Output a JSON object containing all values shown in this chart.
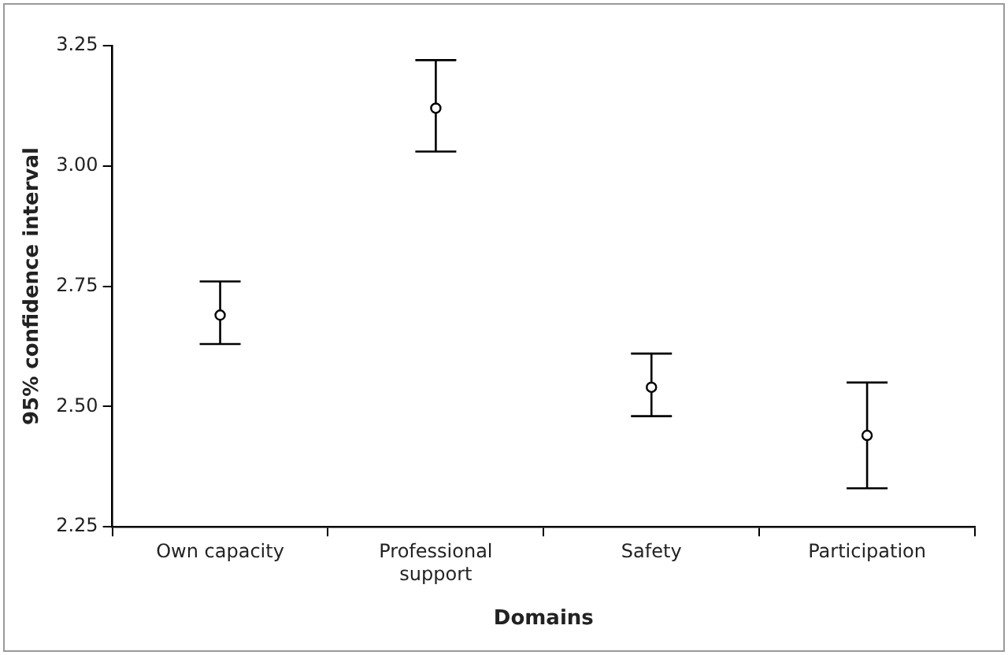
{
  "chart_data": {
    "type": "scatter",
    "xlabel": "Domains",
    "ylabel": "95% confidence interval",
    "categories": [
      "Own capacity",
      "Professional support",
      "Safety",
      "Participation"
    ],
    "series": [
      {
        "color": "#000000",
        "values": [
          2.69,
          3.12,
          2.54,
          2.44
        ],
        "errors": [
          [
            2.63,
            2.76
          ],
          [
            3.03,
            3.22
          ],
          [
            2.48,
            2.61
          ],
          [
            2.33,
            2.55
          ]
        ]
      }
    ],
    "ylim": [
      2.25,
      3.25
    ],
    "yticks": [
      {
        "value": 2.25,
        "label": "2.25"
      },
      {
        "value": 2.5,
        "label": "2.50"
      },
      {
        "value": 2.75,
        "label": "2.75"
      },
      {
        "value": 3,
        "label": "3.00"
      },
      {
        "value": 3.25,
        "label": "3.25"
      }
    ],
    "grid": false,
    "legend": false,
    "marker": "circle"
  }
}
